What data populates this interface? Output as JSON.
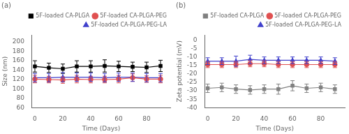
{
  "chart_data": [
    {
      "type": "line",
      "annotation": "(a)",
      "xlabel": "Time (Days)",
      "ylabel": "Size (nm)",
      "x": [
        0,
        10,
        20,
        30,
        40,
        50,
        60,
        70,
        80,
        90
      ],
      "xlim": [
        -2,
        97
      ],
      "xticks": [
        0,
        20,
        40,
        60,
        80
      ],
      "ylim": [
        60,
        215
      ],
      "yticks": [
        60,
        80,
        100,
        120,
        140,
        160,
        180,
        200
      ],
      "grid": false,
      "legend": "upper right",
      "series": [
        {
          "name": "5F-loaded CA-PLGA",
          "color": "#000000",
          "marker": "square",
          "values": [
            148,
            145,
            143,
            148,
            148,
            149,
            148,
            147,
            146,
            149
          ],
          "errors": [
            12,
            10,
            10,
            12,
            12,
            13,
            11,
            10,
            11,
            12
          ]
        },
        {
          "name": "5F-loaded CA-PLGA-PEG",
          "color": "#e05050",
          "marker": "circle",
          "values": [
            121,
            120,
            119,
            121,
            120,
            120,
            121,
            124,
            121,
            121
          ],
          "errors": [
            8,
            7,
            7,
            8,
            7,
            7,
            8,
            8,
            7,
            8
          ]
        },
        {
          "name": "5F-loaded CA-PLGA-PEG-LA",
          "color": "#4040cc",
          "marker": "triangle",
          "values": [
            124,
            124,
            125,
            125,
            125,
            124,
            125,
            125,
            124,
            124
          ],
          "errors": [
            9,
            9,
            10,
            9,
            9,
            9,
            9,
            9,
            9,
            9
          ]
        }
      ]
    },
    {
      "type": "line",
      "annotation": "(b)",
      "xlabel": "Time (Days)",
      "ylabel": "Zeta potential (mV)",
      "x": [
        0,
        10,
        20,
        30,
        40,
        50,
        60,
        70,
        80,
        90
      ],
      "xlim": [
        -2,
        97
      ],
      "xticks": [
        0,
        20,
        40,
        60,
        80
      ],
      "ylim": [
        -40,
        3
      ],
      "yticks": [
        -40,
        -35,
        -30,
        -25,
        -20,
        -15,
        -10,
        -5,
        0
      ],
      "grid": false,
      "legend": "upper right",
      "series": [
        {
          "name": "5F-loaded CA-PLGA",
          "color": "#808080",
          "marker": "square",
          "values": [
            -28.5,
            -28,
            -29,
            -29.5,
            -29,
            -29,
            -27,
            -28.5,
            -28,
            -29
          ],
          "errors": [
            2.5,
            2.5,
            2.5,
            2.5,
            2.5,
            3.0,
            3.0,
            2.5,
            2.5,
            2.5
          ]
        },
        {
          "name": "5F-loaded CA-PLGA-PEG",
          "color": "#e05050",
          "marker": "circle",
          "values": [
            -14.5,
            -14.5,
            -14.5,
            -14,
            -14,
            -14.5,
            -14.5,
            -14.5,
            -14.5,
            -14.5
          ],
          "errors": [
            1.8,
            1.8,
            1.8,
            1.8,
            1.8,
            1.8,
            1.8,
            1.8,
            1.8,
            1.8
          ]
        },
        {
          "name": "5F-loaded CA-PLGA-PEG-LA",
          "color": "#4040cc",
          "marker": "triangle",
          "values": [
            -12.5,
            -12.5,
            -12.5,
            -11.5,
            -12,
            -12,
            -12,
            -12,
            -12,
            -12.5
          ],
          "errors": [
            2.0,
            2.0,
            3.0,
            2.5,
            2.0,
            2.0,
            2.0,
            2.0,
            2.0,
            2.0
          ]
        }
      ]
    }
  ]
}
